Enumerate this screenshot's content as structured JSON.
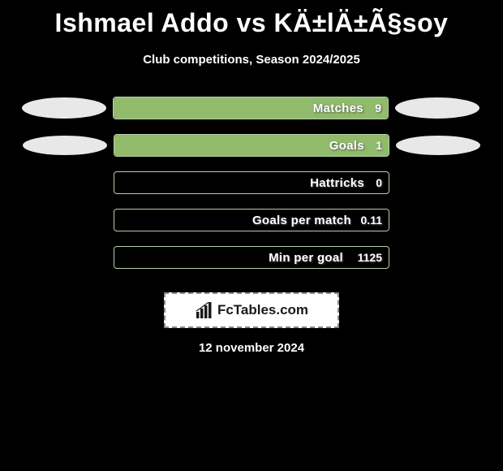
{
  "title": "Ishmael Addo vs KÄ±lÄ±Ã§soy",
  "subtitle": "Club competitions, Season 2024/2025",
  "date": "12 november 2024",
  "logo_text": "FcTables.com",
  "bar_border_color": "#b8cfa8",
  "bar_fill_color": "#8fbb6a",
  "background_color": "#000000",
  "text_color": "#ffffff",
  "ellipse_color": "#e8e8e8",
  "rows": [
    {
      "label": "Matches",
      "value": "9",
      "fill_percent": 100,
      "has_left_ellipse": true,
      "has_right_ellipse": true,
      "ellipse_size": "large",
      "value_width": "normal"
    },
    {
      "label": "Goals",
      "value": "1",
      "fill_percent": 100,
      "has_left_ellipse": true,
      "has_right_ellipse": true,
      "ellipse_size": "small",
      "value_width": "normal"
    },
    {
      "label": "Hattricks",
      "value": "0",
      "fill_percent": 0,
      "has_left_ellipse": false,
      "has_right_ellipse": false,
      "value_width": "normal"
    },
    {
      "label": "Goals per match",
      "value": "0.11",
      "fill_percent": 0,
      "has_left_ellipse": false,
      "has_right_ellipse": false,
      "value_width": "wide"
    },
    {
      "label": "Min per goal",
      "value": "1125",
      "fill_percent": 0,
      "has_left_ellipse": false,
      "has_right_ellipse": false,
      "value_width": "xwide"
    }
  ]
}
